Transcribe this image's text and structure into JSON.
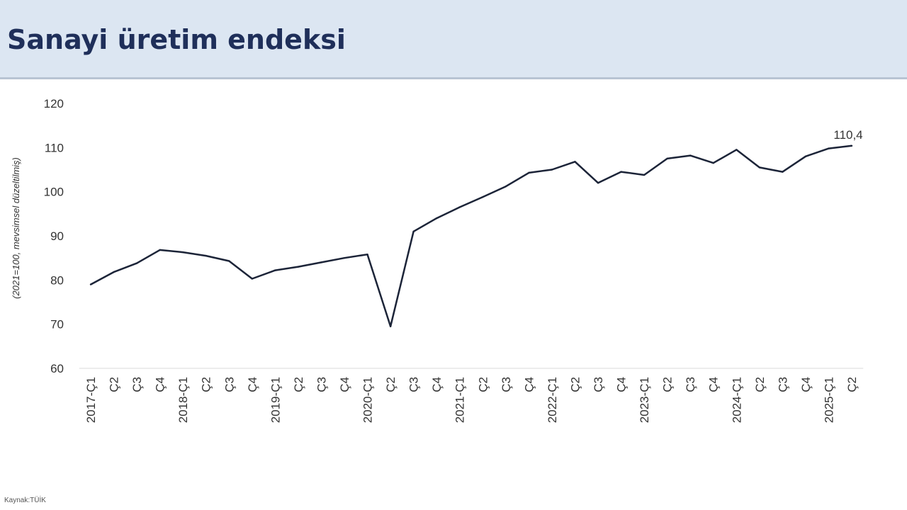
{
  "header": {
    "title": "Sanayi üretim endeksi"
  },
  "footer": {
    "source": "Kaynak:TÜİK"
  },
  "colors": {
    "header_bg": "#dce6f2",
    "title": "#1f2f5a",
    "line": "#1c2438"
  },
  "chart_data": {
    "type": "line",
    "ylabel": "(2021=100, mevsimsel düzeltilmiş)",
    "xlabel": "",
    "ylim": [
      60,
      120
    ],
    "yticks": [
      60,
      70,
      80,
      90,
      100,
      110,
      120
    ],
    "grid": false,
    "categories": [
      "2017-Ç1",
      "Ç2",
      "Ç3",
      "Ç4",
      "2018-Ç1",
      "Ç2",
      "Ç3",
      "Ç4",
      "2019-Ç1",
      "Ç2",
      "Ç3",
      "Ç4",
      "2020-Ç1",
      "Ç2",
      "Ç3",
      "Ç4",
      "2021-Ç1",
      "Ç2",
      "Ç3",
      "Ç4",
      "2022-Ç1",
      "Ç2",
      "Ç3",
      "Ç4",
      "2023-Ç1",
      "Ç2",
      "Ç3",
      "Ç4",
      "2024-Ç1",
      "Ç2",
      "Ç3",
      "Ç4",
      "2025-Ç1",
      "Ç2"
    ],
    "series": [
      {
        "values": [
          79.0,
          81.8,
          83.8,
          86.8,
          86.3,
          85.5,
          84.3,
          80.3,
          82.2,
          83.0,
          84.0,
          85.0,
          85.8,
          69.5,
          91.0,
          94.0,
          96.5,
          98.8,
          101.2,
          104.3,
          105.0,
          106.8,
          102.0,
          104.5,
          103.8,
          107.5,
          108.2,
          106.5,
          109.5,
          105.5,
          104.5,
          108.0,
          109.8,
          110.4
        ]
      }
    ],
    "data_label": {
      "index": 33,
      "text": "110,4"
    }
  }
}
